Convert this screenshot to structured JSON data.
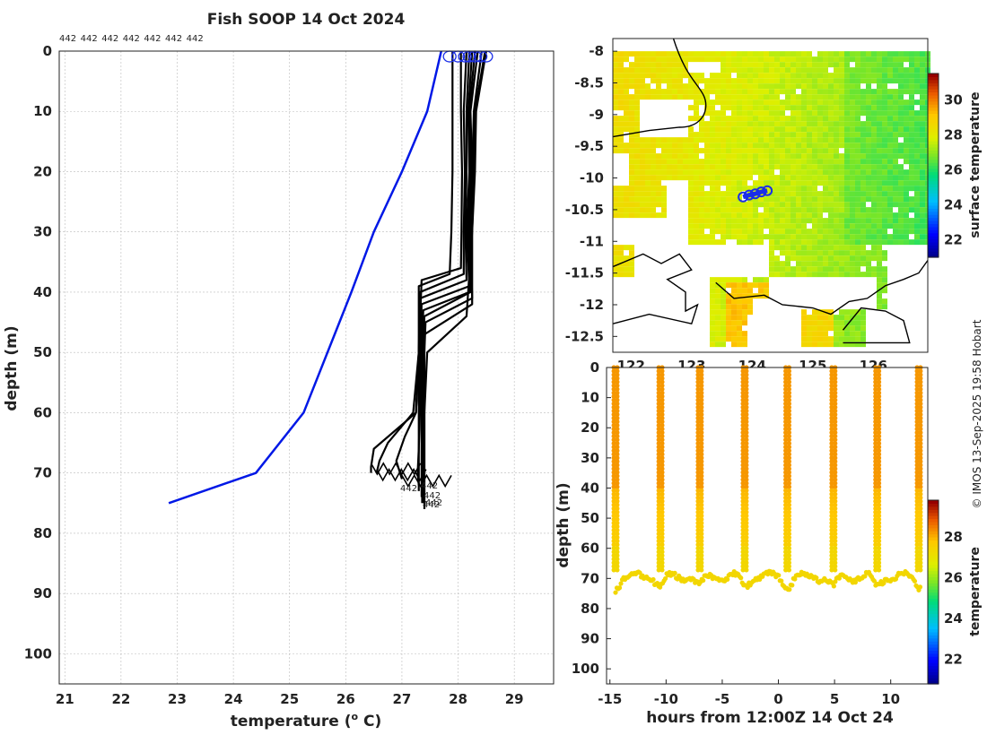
{
  "title": "Fish SOOP 14 Oct 2024",
  "credit": "© IMOS 13-Sep-2025 19:58 Hobart",
  "colors": {
    "reference": "#0018e6",
    "profile": "#000000",
    "marker": "#1a2ee8"
  },
  "chart_data": [
    {
      "type": "line",
      "name": "profiles",
      "title": "Fish SOOP 14 Oct 2024",
      "xlabel": "temperature (°C)",
      "ylabel": "depth (m)",
      "xlim": [
        20.9,
        29.7
      ],
      "ylim": [
        0,
        105
      ],
      "y_inverted": true,
      "xticks": [
        21,
        22,
        23,
        24,
        25,
        26,
        27,
        28,
        29
      ],
      "yticks": [
        0,
        10,
        20,
        30,
        40,
        50,
        60,
        70,
        80,
        90,
        100
      ],
      "top_labels": [
        "442",
        "442",
        "442",
        "442",
        "442",
        "442",
        "442"
      ],
      "end_labels": [
        "442",
        "442",
        "442",
        "442",
        "442"
      ],
      "reference_series": {
        "name": "climatology",
        "temperature": [
          27.7,
          27.45,
          27.0,
          26.5,
          26.1,
          25.25,
          24.4,
          22.85
        ],
        "depth": [
          0,
          10,
          20,
          30,
          40,
          60,
          70,
          75
        ]
      },
      "series": [
        {
          "temperature": [
            27.9,
            27.9,
            27.9,
            27.88,
            27.85,
            27.3,
            27.3,
            27.3,
            27.3,
            27.3,
            27.3
          ],
          "depth": [
            0,
            10,
            20,
            30,
            37,
            39,
            50,
            60,
            65,
            70,
            73
          ]
        },
        {
          "temperature": [
            28.05,
            28.05,
            28.07,
            28.06,
            28.05,
            27.35,
            27.3,
            27.25,
            26.5,
            26.45,
            26.45
          ],
          "depth": [
            0,
            10,
            20,
            30,
            36,
            38,
            50,
            60,
            66,
            69,
            70
          ]
        },
        {
          "temperature": [
            28.15,
            28.1,
            28.12,
            28.1,
            28.1,
            27.32,
            27.3,
            27.2,
            26.75,
            26.6,
            26.55
          ],
          "depth": [
            0,
            10,
            20,
            30,
            37,
            40,
            50,
            60,
            65,
            68,
            70
          ]
        },
        {
          "temperature": [
            28.2,
            28.15,
            28.15,
            28.13,
            28.15,
            27.33,
            27.3,
            27.25,
            27.05,
            26.9,
            27.0
          ],
          "depth": [
            0,
            10,
            20,
            30,
            38,
            41,
            50,
            60,
            64,
            68,
            71
          ]
        },
        {
          "temperature": [
            28.25,
            28.18,
            28.2,
            28.15,
            28.2,
            27.35,
            27.33,
            27.32,
            27.3,
            27.28,
            27.3
          ],
          "depth": [
            0,
            10,
            20,
            30,
            39,
            42,
            50,
            60,
            66,
            70,
            72
          ]
        },
        {
          "temperature": [
            28.3,
            28.2,
            28.22,
            28.18,
            28.2,
            27.38,
            27.35,
            27.35,
            27.35,
            27.35,
            27.35
          ],
          "depth": [
            0,
            10,
            20,
            30,
            40,
            43,
            50,
            60,
            65,
            70,
            74
          ]
        },
        {
          "temperature": [
            28.35,
            28.22,
            28.25,
            28.2,
            28.22,
            27.4,
            27.38,
            27.38,
            27.38,
            27.38,
            27.38
          ],
          "depth": [
            0,
            10,
            20,
            30,
            40,
            44,
            50,
            60,
            65,
            70,
            75
          ]
        },
        {
          "temperature": [
            28.42,
            28.28,
            28.25,
            28.22,
            28.25,
            27.42,
            27.4,
            27.4,
            27.4,
            27.4,
            27.4
          ],
          "depth": [
            0,
            10,
            20,
            30,
            41,
            45,
            50,
            60,
            65,
            70,
            75
          ]
        },
        {
          "temperature": [
            28.48,
            28.3,
            28.28,
            28.25,
            28.25,
            27.4,
            27.38,
            27.36,
            27.36,
            27.36,
            27.36
          ],
          "depth": [
            0,
            10,
            20,
            30,
            42,
            47,
            52,
            60,
            65,
            70,
            75
          ]
        },
        {
          "temperature": [
            28.5,
            28.32,
            28.3,
            28.25,
            28.15,
            27.45,
            27.42,
            27.4,
            27.4,
            27.4,
            27.4
          ],
          "depth": [
            0,
            10,
            20,
            30,
            44,
            50,
            56,
            60,
            65,
            70,
            76
          ]
        }
      ],
      "surface_markers": [
        27.85,
        28.0,
        28.12,
        28.2,
        28.3,
        28.4,
        28.5
      ]
    },
    {
      "type": "heatmap",
      "name": "sst-map",
      "colorbar_label": "surface temperature",
      "colorbar_ticks": [
        22,
        24,
        26,
        28,
        30
      ],
      "colorbar_range": [
        21,
        31.5
      ],
      "xlim": [
        121.7,
        126.9
      ],
      "ylim": [
        -12.75,
        -7.8
      ],
      "yticks": [
        -8,
        -8.5,
        -9,
        -9.5,
        -10,
        -10.5,
        -11,
        -11.5,
        -12,
        -12.5
      ],
      "xticks": [
        122,
        123,
        124,
        125,
        126
      ],
      "track": {
        "lon": [
          123.85,
          123.95,
          124.05,
          124.15,
          124.25
        ],
        "lat": [
          -10.3,
          -10.27,
          -10.25,
          -10.22,
          -10.2
        ]
      }
    },
    {
      "type": "scatter",
      "name": "time-depth",
      "xlabel": "hours from 12:00Z 14 Oct 24",
      "ylabel": "depth (m)",
      "colorbar_label": "temperature",
      "colorbar_ticks": [
        22,
        24,
        26,
        28
      ],
      "colorbar_range": [
        20.8,
        29.8
      ],
      "xlim": [
        -15.3,
        13.3
      ],
      "ylim": [
        0,
        105
      ],
      "xticks": [
        -15,
        -10,
        -5,
        0,
        5,
        10
      ],
      "yticks": [
        0,
        10,
        20,
        30,
        40,
        50,
        60,
        70,
        80,
        90,
        100
      ],
      "profile_hours": [
        -14.5,
        -10.5,
        -7.0,
        -3.0,
        0.8,
        4.9,
        8.8,
        12.5
      ]
    }
  ]
}
